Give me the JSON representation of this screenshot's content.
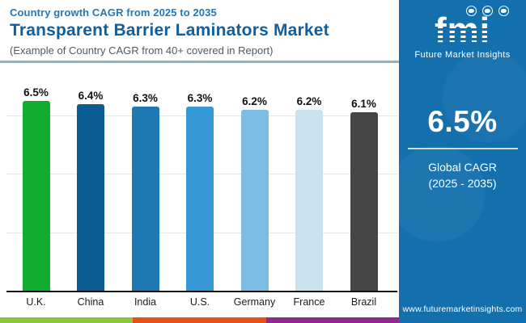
{
  "chart_data": {
    "type": "bar",
    "kicker": "Country growth CAGR from 2025 to 2035",
    "title": "Transparent Barrier Laminators Market",
    "note": "(Example of Country CAGR from 40+ covered in Report)",
    "categories": [
      "U.K.",
      "China",
      "India",
      "U.S.",
      "Germany",
      "France",
      "Brazil"
    ],
    "values": [
      6.5,
      6.4,
      6.3,
      6.3,
      6.2,
      6.2,
      6.1
    ],
    "value_labels": [
      "6.5%",
      "6.4%",
      "6.3%",
      "6.3%",
      "6.2%",
      "6.2%",
      "6.1%"
    ],
    "bar_colors": [
      "#12ac31",
      "#0a5c92",
      "#1e79b2",
      "#3597d4",
      "#7cbbe2",
      "#c8e2f0",
      "#454545"
    ],
    "xlabel": "",
    "ylabel": "",
    "ylim": [
      0,
      7.9
    ],
    "yticks": [
      0,
      2,
      4,
      6
    ],
    "grid": true,
    "legend": "none",
    "value_suffix": "%"
  },
  "sidebar": {
    "logo_text": "fmi",
    "logo_caption": "Future Market Insights",
    "logo_icons": [
      "us-map-icon",
      "compass-icon",
      "americas-globe-icon"
    ],
    "stat_value": "6.5%",
    "stat_label_line1": "Global CAGR",
    "stat_label_line2": "(2025 - 2035)",
    "website": "www.futuremarketinsights.com",
    "background_color": "#1470ad"
  },
  "footer": {
    "strip_colors": [
      "#8dc63f",
      "#e2531d",
      "#8e2a8e"
    ]
  }
}
